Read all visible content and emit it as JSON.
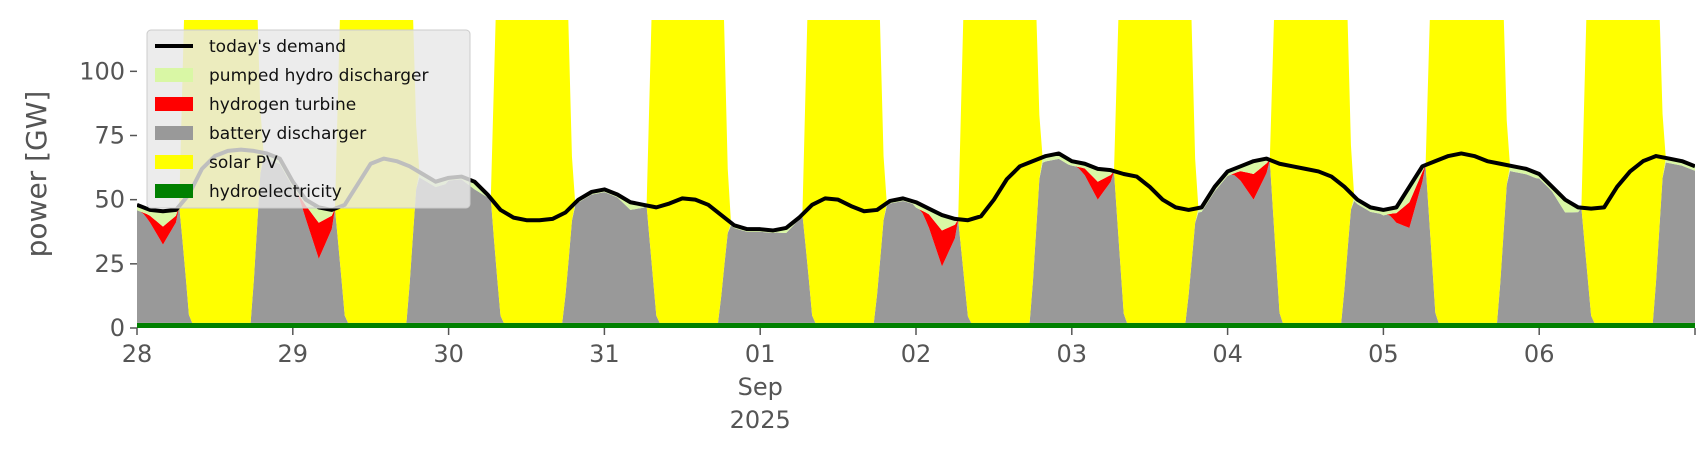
{
  "chart_data": {
    "type": "area",
    "ylabel": "power [GW]",
    "ylim": [
      0,
      120
    ],
    "yticks": [
      0,
      25,
      50,
      75,
      100
    ],
    "xlim": [
      "2025-08-28T00:00",
      "2025-09-07T00:00"
    ],
    "x_ticks": [
      {
        "value": "2025-08-28",
        "label": "28"
      },
      {
        "value": "2025-08-29",
        "label": "29"
      },
      {
        "value": "2025-08-30",
        "label": "30"
      },
      {
        "value": "2025-08-31",
        "label": "31"
      },
      {
        "value": "2025-09-01",
        "label": "01",
        "sub1": "Sep",
        "sub2": "2025"
      },
      {
        "value": "2025-09-02",
        "label": "02"
      },
      {
        "value": "2025-09-03",
        "label": "03"
      },
      {
        "value": "2025-09-04",
        "label": "04"
      },
      {
        "value": "2025-09-05",
        "label": "05"
      },
      {
        "value": "2025-09-06",
        "label": "06"
      }
    ],
    "legend_position": "top-left",
    "stack_order": [
      "hydroelectricity",
      "battery discharger",
      "hydrogen turbine",
      "pumped hydro discharger",
      "solar PV"
    ],
    "series": [
      {
        "name": "today's demand",
        "type": "line",
        "color": "#000000"
      },
      {
        "name": "pumped hydro discharger",
        "color": "#d9f7a5"
      },
      {
        "name": "hydrogen turbine",
        "color": "#ff0000"
      },
      {
        "name": "battery discharger",
        "color": "#999999"
      },
      {
        "name": "solar PV",
        "color": "#ffff00"
      },
      {
        "name": "hydroelectricity",
        "color": "#008000"
      }
    ],
    "demand": {
      "hours": [
        0,
        2,
        4,
        6,
        8,
        10,
        12,
        14,
        16,
        18,
        20,
        22,
        24,
        26,
        28,
        30,
        32,
        34,
        36,
        38,
        40,
        42,
        44,
        46,
        48,
        50,
        52,
        54,
        56,
        58,
        60,
        62,
        64,
        66,
        68,
        70,
        72,
        74,
        76,
        78,
        80,
        82,
        84,
        86,
        88,
        90,
        92,
        94,
        96,
        98,
        100,
        102,
        104,
        106,
        108,
        110,
        112,
        114,
        116,
        118,
        120,
        122,
        124,
        126,
        128,
        130,
        132,
        134,
        136,
        138,
        140,
        142,
        144,
        146,
        148,
        150,
        152,
        154,
        156,
        158,
        160,
        162,
        164,
        166,
        168,
        170,
        172,
        174,
        176,
        178,
        180,
        182,
        184,
        186,
        188,
        190,
        192,
        194,
        196,
        198,
        200,
        202,
        204,
        206,
        208,
        210,
        212,
        214,
        216,
        218,
        220,
        222,
        224,
        226,
        228,
        230,
        232,
        234,
        236,
        238,
        240
      ],
      "values": [
        48,
        46,
        45.5,
        46,
        52,
        62,
        67,
        69,
        69.5,
        69,
        68,
        66,
        57,
        50,
        47,
        46,
        48,
        56,
        64,
        66,
        65,
        63,
        60,
        57,
        58.5,
        59,
        57,
        52,
        46,
        43,
        42,
        42,
        42.5,
        45,
        50,
        53,
        54,
        52,
        49,
        48,
        47,
        48.5,
        50.5,
        50,
        48,
        44,
        40,
        38.5,
        38.5,
        38,
        39,
        43,
        48,
        50.5,
        50,
        47.5,
        45.5,
        46,
        49.5,
        50.5,
        49,
        46.5,
        44,
        42.5,
        42,
        43.5,
        50,
        58,
        63,
        65,
        67,
        68,
        65,
        64,
        62,
        61.5,
        60,
        59,
        55,
        50,
        47,
        46,
        47,
        55,
        61,
        63,
        65,
        66,
        64,
        63,
        62,
        61,
        59,
        55,
        50,
        47,
        46,
        47,
        55,
        63,
        65,
        67,
        68,
        67,
        65,
        64,
        63,
        62,
        60,
        55,
        50,
        47,
        46.5,
        47,
        55,
        61,
        65,
        67,
        66,
        65,
        63
      ]
    },
    "daily": {
      "days": [
        "2025-08-28",
        "2025-08-29",
        "2025-08-30",
        "2025-08-31",
        "2025-09-01",
        "2025-09-02",
        "2025-09-03",
        "2025-09-04",
        "2025-09-05",
        "2025-09-06"
      ],
      "hydrogen_turbine_night_peak": [
        7,
        14,
        0,
        0,
        0,
        14,
        7,
        10,
        10,
        0
      ],
      "pumped_hydro_night_peak": [
        6,
        6,
        3,
        3,
        2,
        6,
        5,
        5,
        6,
        5
      ],
      "solar_clips_above_ylim": [
        true,
        true,
        true,
        true,
        true,
        true,
        true,
        true,
        true,
        true
      ]
    },
    "hydroelectricity_gw": 2
  }
}
